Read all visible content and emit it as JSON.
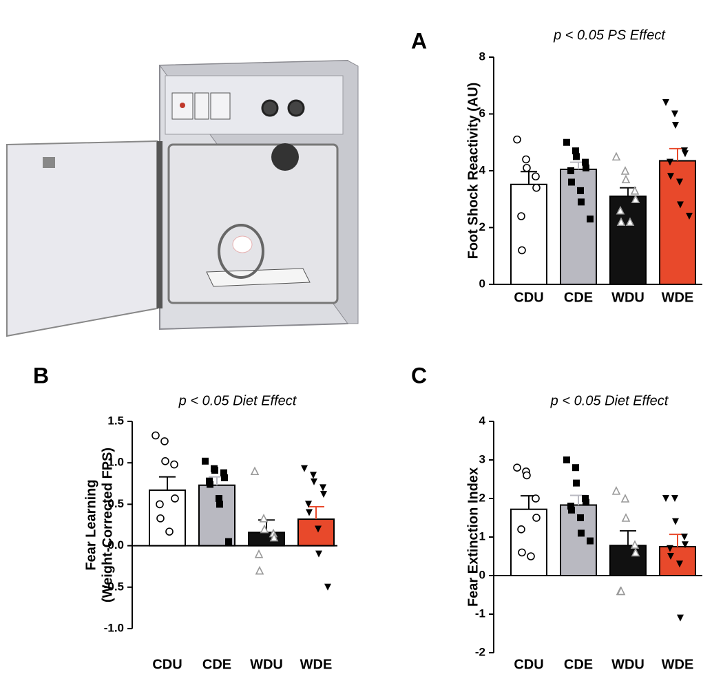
{
  "chart_data": [
    {
      "type": "bar",
      "panel_label": "A",
      "title": "p < 0.05 PS Effect",
      "y_label": [
        "Foot Shock Reactivity (AU)"
      ],
      "categories": [
        "CDU",
        "CDE",
        "WDU",
        "WDE"
      ],
      "values": [
        3.52,
        4.05,
        3.1,
        4.35
      ],
      "errors": [
        0.45,
        0.25,
        0.3,
        0.43
      ],
      "colors": [
        "#ffffff",
        "#b9b9c1",
        "#111111",
        "#e8492b"
      ],
      "markers": [
        "circle-open",
        "square",
        "triangle-open",
        "triangle-down"
      ],
      "points": [
        [
          5.1,
          4.4,
          4.1,
          3.8,
          3.4,
          2.4,
          1.2
        ],
        [
          5.0,
          4.7,
          4.5,
          4.3,
          4.1,
          4.0,
          3.6,
          3.3,
          2.9,
          2.3
        ],
        [
          4.5,
          4.0,
          3.7,
          3.3,
          3.0,
          2.6,
          2.2,
          2.2
        ],
        [
          6.4,
          6.0,
          5.6,
          4.7,
          4.6,
          4.3,
          3.8,
          3.6,
          2.8,
          2.4
        ]
      ],
      "ylim": [
        0,
        8
      ],
      "yticks": [
        0,
        2,
        4,
        6,
        8
      ]
    },
    {
      "type": "bar",
      "panel_label": "B",
      "title": "p < 0.05 Diet Effect",
      "y_label": [
        "Fear Learning",
        "(Weight-Corrected FPS)"
      ],
      "categories": [
        "CDU",
        "CDE",
        "WDU",
        "WDE"
      ],
      "values": [
        0.67,
        0.73,
        0.16,
        0.32
      ],
      "errors": [
        0.16,
        0.1,
        0.15,
        0.15
      ],
      "colors": [
        "#ffffff",
        "#b9b9c1",
        "#111111",
        "#e8492b"
      ],
      "markers": [
        "circle-open",
        "square",
        "triangle-open",
        "triangle-down"
      ],
      "points": [
        [
          1.33,
          1.26,
          1.02,
          0.98,
          0.57,
          0.5,
          0.33,
          0.17
        ],
        [
          1.02,
          0.93,
          0.91,
          0.88,
          0.82,
          0.78,
          0.74,
          0.57,
          0.5,
          0.05
        ],
        [
          0.9,
          0.33,
          0.2,
          0.15,
          0.1,
          -0.1,
          -0.3
        ],
        [
          0.93,
          0.85,
          0.77,
          0.7,
          0.62,
          0.5,
          0.4,
          0.2,
          -0.1,
          -0.5
        ]
      ],
      "ylim": [
        -1,
        1.5
      ],
      "yticks": [
        {
          "value": -1,
          "label": "-1.0"
        },
        -0.5,
        {
          "value": 0,
          "label": "0.0"
        },
        0.5,
        {
          "value": 1,
          "label": "1.0"
        },
        1.5
      ]
    },
    {
      "type": "bar",
      "panel_label": "C",
      "title": "p < 0.05 Diet Effect",
      "y_label": [
        "Fear Extinction Index"
      ],
      "categories": [
        "CDU",
        "CDE",
        "WDU",
        "WDE"
      ],
      "values": [
        1.72,
        1.83,
        0.78,
        0.75
      ],
      "errors": [
        0.35,
        0.25,
        0.38,
        0.32
      ],
      "colors": [
        "#ffffff",
        "#b9b9c1",
        "#111111",
        "#e8492b"
      ],
      "markers": [
        "circle-open",
        "square",
        "triangle-open",
        "triangle-down"
      ],
      "points": [
        [
          2.8,
          2.7,
          2.6,
          2.0,
          1.5,
          1.2,
          0.6,
          0.5
        ],
        [
          3.0,
          2.8,
          2.4,
          2.0,
          1.9,
          1.8,
          1.7,
          1.5,
          1.1,
          0.9
        ],
        [
          2.2,
          2.0,
          1.5,
          0.8,
          0.6,
          -0.4,
          -0.4
        ],
        [
          2.0,
          2.0,
          1.4,
          1.0,
          0.8,
          0.7,
          0.5,
          0.3,
          -1.1
        ]
      ],
      "ylim": [
        -2,
        4
      ],
      "yticks": [
        -2,
        -1,
        0,
        1,
        2,
        3,
        4
      ]
    }
  ]
}
